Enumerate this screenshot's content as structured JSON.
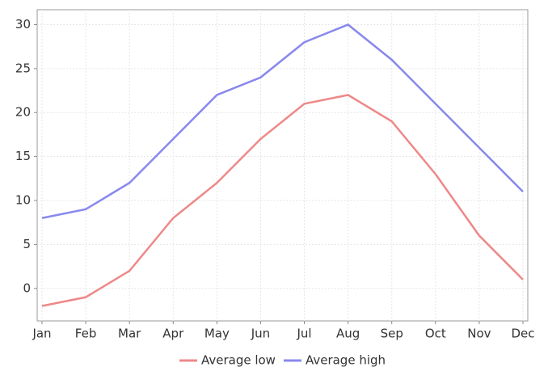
{
  "chart_data": {
    "type": "line",
    "categories": [
      "Jan",
      "Feb",
      "Mar",
      "Apr",
      "May",
      "Jun",
      "Jul",
      "Aug",
      "Sep",
      "Oct",
      "Nov",
      "Dec"
    ],
    "series": [
      {
        "name": "Average low",
        "color": "#ee8888",
        "values": [
          -2,
          -1,
          2,
          8,
          12,
          17,
          21,
          22,
          19,
          13,
          6,
          1
        ]
      },
      {
        "name": "Average high",
        "color": "#8888ee",
        "values": [
          8,
          9,
          12,
          17,
          22,
          24,
          28,
          30,
          26,
          21,
          16,
          11
        ]
      }
    ],
    "ylim": [
      -3.7,
      31.7
    ],
    "yticks": [
      0,
      5,
      10,
      15,
      20,
      25,
      30
    ],
    "grid": true,
    "legend": "bottom"
  }
}
